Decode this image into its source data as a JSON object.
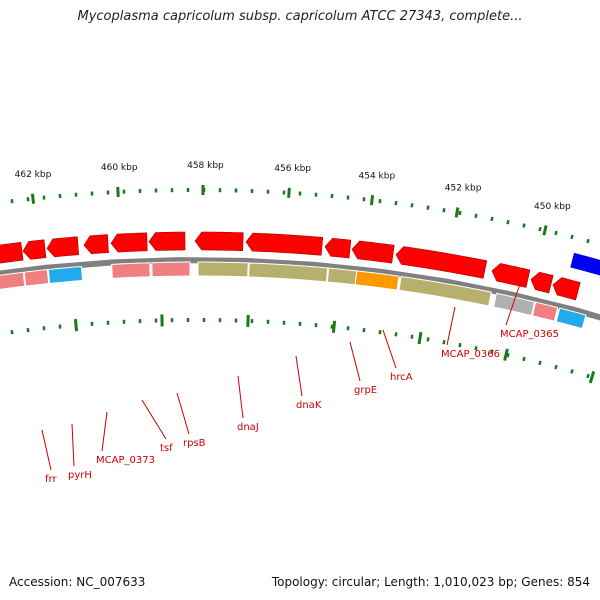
{
  "title": "Mycoplasma capricolum subsp. capricolum ATCC 27343, complete...",
  "footer": {
    "accession": "Accession: NC_007633",
    "summary": "Topology: circular; Length: 1,010,023 bp; Genes: 854"
  },
  "ticks": [
    "450 kbp",
    "452 kbp",
    "454 kbp",
    "456 kbp",
    "458 kbp",
    "460 kbp",
    "462 kbp"
  ],
  "gene_labels": [
    "frr",
    "pyrH",
    "MCAP_0373",
    "tsf",
    "rpsB",
    "dnaJ",
    "dnaK",
    "grpE",
    "hrcA",
    "MCAP_0366",
    "MCAP_0365"
  ],
  "colors": {
    "backbone": "#808080",
    "gene": "#ff0000",
    "cds_pink": "#f08080",
    "cds_olive": "#b7b06c",
    "cds_orange": "#ff9900",
    "cds_cyan": "#22aaee",
    "cds_gray": "#b0b0b0",
    "blue_feature": "#0000ee",
    "tick": "#1a7a1a",
    "label": "#cc0000"
  }
}
